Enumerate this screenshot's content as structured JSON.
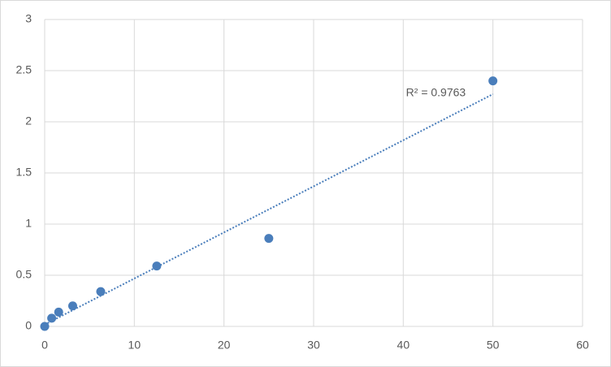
{
  "chart_data": {
    "type": "scatter",
    "series": [
      {
        "name": null,
        "color": "#4a7ebb",
        "x": [
          0,
          0.78,
          1.56,
          3.125,
          6.25,
          12.5,
          25,
          50
        ],
        "values": [
          0,
          0.08,
          0.14,
          0.2,
          0.34,
          0.59,
          0.86,
          2.4
        ]
      }
    ],
    "trendline": {
      "type": "linear",
      "label": "R² = 0.9763"
    },
    "xlim": [
      0,
      60
    ],
    "xticks": [
      0,
      10,
      20,
      30,
      40,
      50,
      60
    ],
    "ylim": [
      0,
      3
    ],
    "yticks": [
      0,
      0.5,
      1,
      1.5,
      2,
      2.5,
      3
    ],
    "grid": true
  }
}
